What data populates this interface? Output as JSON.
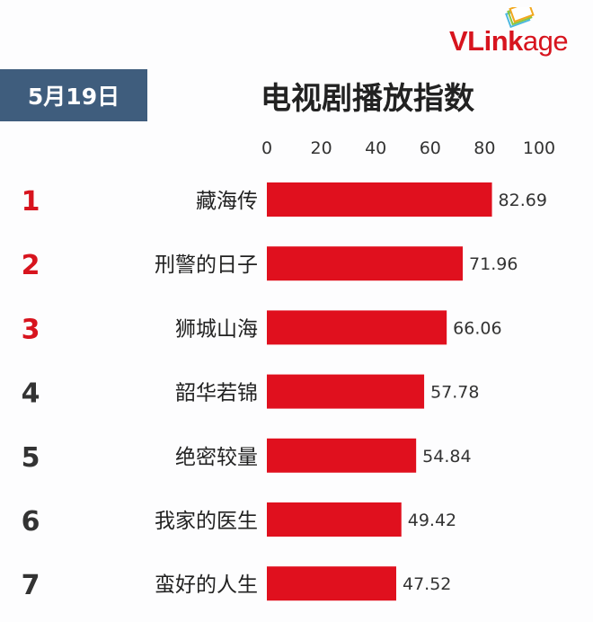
{
  "brand": {
    "logo": "VLinkage",
    "logo_strong": "VLink",
    "logo_rest": "age"
  },
  "date": "5月19日",
  "chart_data": {
    "type": "bar",
    "orientation": "horizontal",
    "title": "电视剧播放指数",
    "xlim": [
      0,
      100
    ],
    "xticks": [
      0,
      20,
      40,
      60,
      80,
      100
    ],
    "ranks": [
      "1",
      "2",
      "3",
      "4",
      "5",
      "6",
      "7"
    ],
    "categories": [
      "藏海传",
      "刑警的日子",
      "狮城山海",
      "韶华若锦",
      "绝密较量",
      "我家的医生",
      "蛮好的人生"
    ],
    "values": [
      82.69,
      71.96,
      66.06,
      57.78,
      54.84,
      49.42,
      47.52
    ],
    "value_labels": [
      "82.69",
      "71.96",
      "66.06",
      "57.78",
      "54.84",
      "49.42",
      "47.52"
    ],
    "bar_color": "#e0101e",
    "top_rank_color": "#d7141e",
    "rank_color": "#333333",
    "grid": false
  }
}
